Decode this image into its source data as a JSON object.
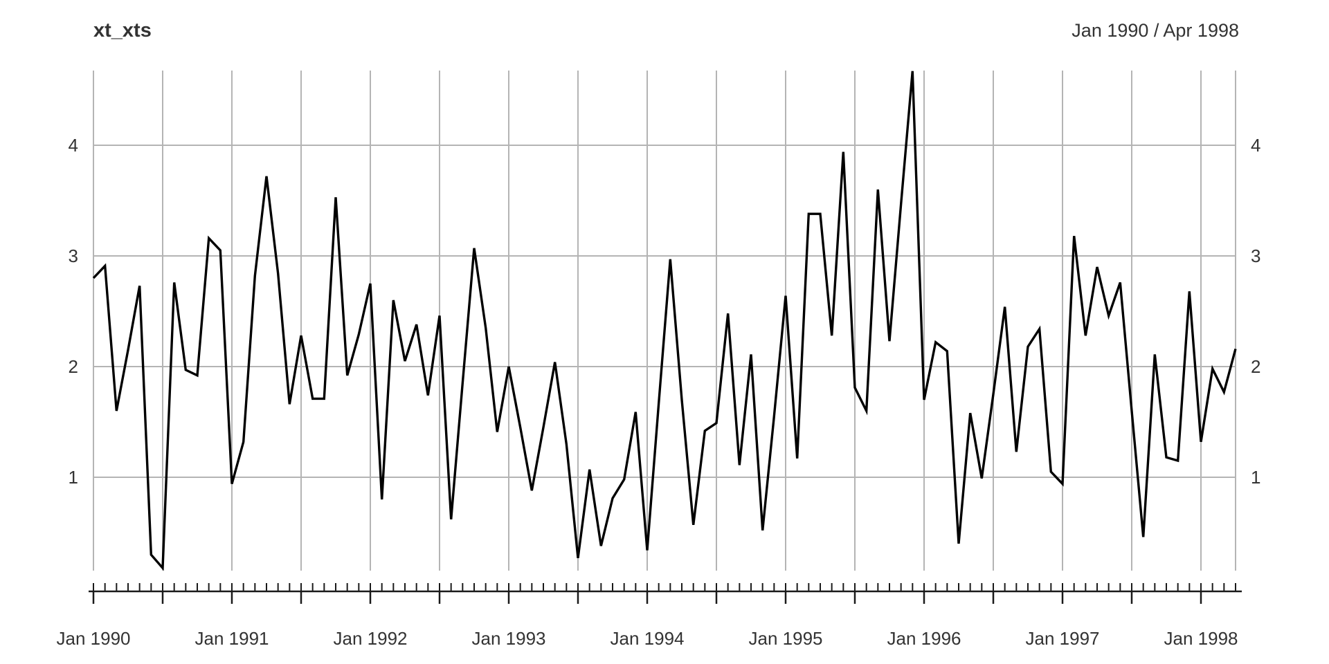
{
  "header": {
    "title": "xt_xts",
    "date_range": "Jan 1990 / Apr 1998"
  },
  "chart_data": {
    "type": "line",
    "title": "xt_xts",
    "period_label": "Jan 1990 / Apr 1998",
    "x_unit": "month",
    "x_start": "Jan 1990",
    "x_end": "Apr 1998",
    "n_points": 100,
    "x_tick_labels": [
      "Jan 1990",
      "Jan 1991",
      "Jan 1992",
      "Jan 1993",
      "Jan 1994",
      "Jan 1995",
      "Jan 1996",
      "Jan 1997",
      "Jan 1998"
    ],
    "x_tick_months": [
      0,
      12,
      24,
      36,
      48,
      60,
      72,
      84,
      96
    ],
    "x_grid_every_months": 6,
    "x_minor_tick_every_months": 1,
    "y_ticks": [
      1,
      2,
      3,
      4
    ],
    "y_axis_sides": [
      "left",
      "right"
    ],
    "ylim": [
      0.156,
      4.675
    ],
    "grid": true,
    "legend_position": "none",
    "line_color": "#000000",
    "grid_color": "#b4b4b4",
    "axis_color": "#1a1a1a",
    "label_color": "#333333",
    "values": [
      2.8,
      2.91,
      1.6,
      2.15,
      2.73,
      0.3,
      0.18,
      2.76,
      1.97,
      1.92,
      3.16,
      3.05,
      0.94,
      1.32,
      2.82,
      3.72,
      2.84,
      1.66,
      2.28,
      1.71,
      1.71,
      3.53,
      1.92,
      2.29,
      2.75,
      0.8,
      2.6,
      2.05,
      2.38,
      1.74,
      2.46,
      0.62,
      1.85,
      3.07,
      2.35,
      1.41,
      2.0,
      1.45,
      0.88,
      1.45,
      2.04,
      1.3,
      0.27,
      1.07,
      0.38,
      0.81,
      0.98,
      1.59,
      0.34,
      1.67,
      2.97,
      1.7,
      0.57,
      1.42,
      1.49,
      2.48,
      1.11,
      2.11,
      0.52,
      1.55,
      2.64,
      1.17,
      3.38,
      3.38,
      2.28,
      3.94,
      1.81,
      1.6,
      3.6,
      2.23,
      3.47,
      4.67,
      1.7,
      2.22,
      2.14,
      0.4,
      1.58,
      0.99,
      1.75,
      2.54,
      1.23,
      2.18,
      2.34,
      1.05,
      0.94,
      3.18,
      2.28,
      2.9,
      2.46,
      2.76,
      1.6,
      0.46,
      2.11,
      1.18,
      1.15,
      2.68,
      1.32,
      1.98,
      1.77,
      2.16
    ]
  }
}
